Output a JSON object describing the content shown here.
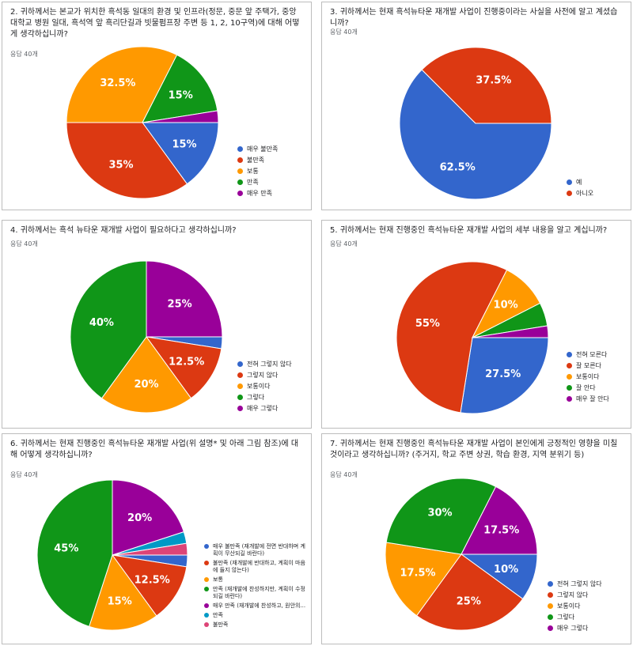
{
  "colors": {
    "blue": "#3366cc",
    "red": "#dc3912",
    "orange": "#ff9900",
    "green": "#109618",
    "purple": "#990099",
    "teal": "#0099c6",
    "pink": "#dd4477"
  },
  "chart_data": [
    {
      "id": "q2",
      "type": "pie",
      "title": "2. 귀하께서는 본교가 위치한 흑석동 일대의 환경 및 인프라(정문, 중문 앞 주택가, 중앙대학교 병원 일대, 흑석역 앞 흑리단길과 빗물펌프장 주변 등 1, 2, 10구역)에 대해 어떻게 생각하십니까?",
      "responses": "응답 40개",
      "legend": [
        "매우 불만족",
        "불만족",
        "보통",
        "만족",
        "매우 만족"
      ],
      "values": [
        15,
        35,
        32.5,
        15,
        2.5
      ],
      "labels": [
        "15%",
        "35%",
        "32.5%",
        "15%",
        ""
      ],
      "colors": [
        "#3366cc",
        "#dc3912",
        "#ff9900",
        "#109618",
        "#990099"
      ]
    },
    {
      "id": "q3",
      "type": "pie",
      "title": "3. 귀하께서는 현재 흑석뉴타운 재개발 사업이 진행중이라는 사실을 사전에 알고 계셨습니까?",
      "responses": "응답 40개",
      "legend": [
        "예",
        "아니오"
      ],
      "values": [
        62.5,
        37.5
      ],
      "labels": [
        "62.5%",
        "37.5%"
      ],
      "colors": [
        "#3366cc",
        "#dc3912"
      ]
    },
    {
      "id": "q4",
      "type": "pie",
      "title": "4. 귀하께서는 흑석 뉴타운 재개발 사업이 필요하다고 생각하십니까?",
      "responses": "응답 40개",
      "legend": [
        "전혀 그렇지 않다",
        "그렇지 않다",
        "보통이다",
        "그렇다",
        "매우 그렇다"
      ],
      "values": [
        2.5,
        12.5,
        20,
        40,
        25
      ],
      "labels": [
        "",
        "12.5%",
        "20%",
        "40%",
        "25%"
      ],
      "colors": [
        "#3366cc",
        "#dc3912",
        "#ff9900",
        "#109618",
        "#990099"
      ]
    },
    {
      "id": "q5",
      "type": "pie",
      "title": "5. 귀하께서는 현재 진행중인 흑석뉴타운 재개발 사업의 세부 내용을 알고 계십니까?",
      "responses": "응답 40개",
      "legend": [
        "전혀 모른다",
        "잘 모른다",
        "보통이다",
        "잘 안다",
        "매우 잘 안다"
      ],
      "values": [
        27.5,
        55,
        10,
        5,
        2.5
      ],
      "labels": [
        "27.5%",
        "55%",
        "10%",
        "",
        ""
      ],
      "colors": [
        "#3366cc",
        "#dc3912",
        "#ff9900",
        "#109618",
        "#990099"
      ]
    },
    {
      "id": "q6",
      "type": "pie",
      "title": "6. 귀하께서는 현재 진행중인 흑석뉴타운 재개발 사업(위 설명* 및 아래 그림 참조)에 대해 어떻게 생각하십니까?",
      "responses": "응답 40개",
      "legend": [
        "매우 불만족 (재개발에 전면 반대하며 계획이 무산되길 바란다)",
        "불만족 (재개발에 반대하고, 계획이 마음에 들지 않는다)",
        "보통",
        "만족 (재개발에 찬성하지만, 계획이 수정되길 바란다)",
        "매우 만족 (재개발에 찬성하고, 원안의...",
        "만족",
        "불만족"
      ],
      "values": [
        2.5,
        12.5,
        15,
        45,
        20,
        2.5,
        2.5
      ],
      "labels": [
        "",
        "12.5%",
        "15%",
        "45%",
        "20%",
        "",
        ""
      ],
      "colors": [
        "#3366cc",
        "#dc3912",
        "#ff9900",
        "#109618",
        "#990099",
        "#0099c6",
        "#dd4477"
      ]
    },
    {
      "id": "q7",
      "type": "pie",
      "title": "7. 귀하께서는 현재 진행중인 흑석뉴타운 재개발 사업이 본인에게 긍정적인 영향을 미칠 것이라고 생각하십니까? (주거지, 학교 주변 상권, 학습 환경, 지역 분위기 등)",
      "responses": "응답 40개",
      "legend": [
        "전혀 그렇지 않다",
        "그렇지 않다",
        "보통이다",
        "그렇다",
        "매우 그렇다"
      ],
      "values": [
        10,
        25,
        17.5,
        30,
        17.5
      ],
      "labels": [
        "10%",
        "25%",
        "17.5%",
        "30%",
        "17.5%"
      ],
      "colors": [
        "#3366cc",
        "#dc3912",
        "#ff9900",
        "#109618",
        "#990099"
      ]
    }
  ]
}
